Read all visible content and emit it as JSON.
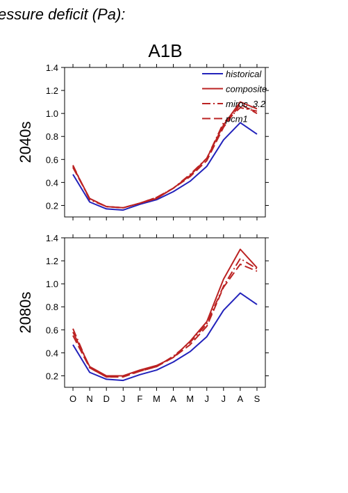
{
  "page_title": "essure deficit (Pa):",
  "scenario_title": "A1B",
  "colors": {
    "historical": "#2222bb",
    "model": "#bb2222",
    "axis": "#000000"
  },
  "chart_data": [
    {
      "type": "line",
      "ylabel": "2040s",
      "categories": [
        "O",
        "N",
        "D",
        "J",
        "F",
        "M",
        "A",
        "M",
        "J",
        "J",
        "A",
        "S"
      ],
      "ylim": [
        0.1,
        1.4
      ],
      "yticks": [
        0.2,
        0.4,
        0.6,
        0.8,
        1.0,
        1.2,
        1.4
      ],
      "ytick_labels": [
        "0.2",
        "0.4",
        "0.6",
        "0.8",
        "1.0",
        "1.2",
        "1.4"
      ],
      "show_xtick_labels": false,
      "legend": {
        "position": "top-right"
      },
      "series": [
        {
          "name": "historical",
          "style": "solid",
          "color": "#2222bb",
          "values": [
            0.47,
            0.23,
            0.17,
            0.16,
            0.21,
            0.25,
            0.32,
            0.41,
            0.54,
            0.77,
            0.92,
            0.82
          ]
        },
        {
          "name": "composite",
          "style": "solid",
          "color": "#bb2222",
          "values": [
            0.54,
            0.26,
            0.19,
            0.18,
            0.22,
            0.26,
            0.35,
            0.46,
            0.61,
            0.9,
            1.1,
            1.04
          ]
        },
        {
          "name": "miroc_3.2",
          "style": "dashdot",
          "color": "#bb2222",
          "values": [
            0.55,
            0.25,
            0.19,
            0.18,
            0.22,
            0.27,
            0.35,
            0.47,
            0.61,
            0.92,
            1.05,
            1.02
          ]
        },
        {
          "name": "pcm1",
          "style": "dashed",
          "color": "#bb2222",
          "values": [
            0.53,
            0.26,
            0.19,
            0.18,
            0.22,
            0.27,
            0.35,
            0.45,
            0.59,
            0.88,
            1.08,
            1.0
          ]
        }
      ]
    },
    {
      "type": "line",
      "ylabel": "2080s",
      "categories": [
        "O",
        "N",
        "D",
        "J",
        "F",
        "M",
        "A",
        "M",
        "J",
        "J",
        "A",
        "S"
      ],
      "ylim": [
        0.1,
        1.4
      ],
      "yticks": [
        0.2,
        0.4,
        0.6,
        0.8,
        1.0,
        1.2,
        1.4
      ],
      "ytick_labels": [
        "0.2",
        "0.4",
        "0.6",
        "0.8",
        "1.0",
        "1.2",
        "1.4"
      ],
      "show_xtick_labels": true,
      "series": [
        {
          "name": "historical",
          "style": "solid",
          "color": "#2222bb",
          "values": [
            0.47,
            0.23,
            0.17,
            0.16,
            0.21,
            0.25,
            0.32,
            0.41,
            0.54,
            0.77,
            0.92,
            0.82
          ]
        },
        {
          "name": "composite",
          "style": "solid",
          "color": "#bb2222",
          "values": [
            0.58,
            0.28,
            0.2,
            0.2,
            0.25,
            0.29,
            0.36,
            0.5,
            0.67,
            1.04,
            1.3,
            1.14
          ]
        },
        {
          "name": "miroc_3.2",
          "style": "dashdot",
          "color": "#bb2222",
          "values": [
            0.61,
            0.27,
            0.19,
            0.2,
            0.24,
            0.28,
            0.37,
            0.49,
            0.65,
            0.98,
            1.22,
            1.13
          ]
        },
        {
          "name": "pcm1",
          "style": "dashed",
          "color": "#bb2222",
          "values": [
            0.55,
            0.27,
            0.19,
            0.19,
            0.24,
            0.28,
            0.36,
            0.47,
            0.63,
            0.97,
            1.17,
            1.11
          ]
        }
      ]
    }
  ]
}
